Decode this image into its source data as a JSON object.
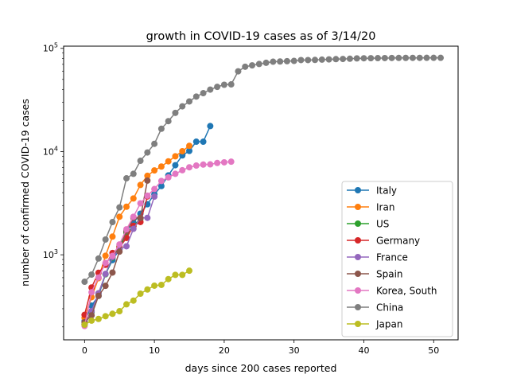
{
  "chart_data": {
    "type": "line",
    "title": "growth in COVID-19 cases as of 3/14/20",
    "xlabel": "days since 200 cases reported",
    "ylabel": "number of confirmed COVID-19 cases",
    "y_scale": "log",
    "xlim": [
      -3,
      53.5
    ],
    "ylim": [
      150,
      105000
    ],
    "x_ticks": [
      0,
      10,
      20,
      30,
      40,
      50
    ],
    "y_ticks": [
      {
        "value": 1000,
        "label": "10",
        "exp": "3"
      },
      {
        "value": 10000,
        "label": "10",
        "exp": "4"
      },
      {
        "value": 100000,
        "label": "10",
        "exp": "5"
      }
    ],
    "grid": false,
    "legend_position": "lower right",
    "marker": "circle",
    "series": [
      {
        "name": "Italy",
        "color": "#1f77b4",
        "values": [
          229,
          322,
          400,
          650,
          888,
          1128,
          1694,
          2036,
          2502,
          3089,
          3858,
          4636,
          5883,
          7375,
          9172,
          10149,
          12462,
          12462,
          17660
        ]
      },
      {
        "name": "Iran",
        "color": "#ff7f0e",
        "values": [
          245,
          388,
          593,
          978,
          1501,
          2336,
          2922,
          3513,
          4747,
          5823,
          6566,
          7161,
          8042,
          9000,
          10075,
          11364
        ]
      },
      {
        "name": "US",
        "color": "#2ca02c",
        "values": [
          213,
          279,
          423,
          647,
          937,
          1215,
          1629,
          1896,
          2234
        ]
      },
      {
        "name": "Germany",
        "color": "#d62728",
        "values": [
          262,
          482,
          670,
          799,
          1040,
          1176,
          1457,
          1908,
          2078,
          3675
        ]
      },
      {
        "name": "France",
        "color": "#9467bd",
        "values": [
          212,
          285,
          423,
          653,
          949,
          1126,
          1209,
          1784,
          2281,
          2281,
          3661
        ]
      },
      {
        "name": "Spain",
        "color": "#8c564b",
        "values": [
          222,
          259,
          400,
          500,
          673,
          1073,
          1695,
          2277,
          2277,
          5232
        ]
      },
      {
        "name": "Korea, South",
        "color": "#e377c2",
        "values": [
          204,
          433,
          602,
          833,
          977,
          1261,
          1766,
          2337,
          3150,
          3736,
          4335,
          5186,
          5621,
          6088,
          6593,
          7041,
          7314,
          7478,
          7513,
          7755,
          7869,
          7979
        ]
      },
      {
        "name": "China",
        "color": "#7f7f7f",
        "values": [
          548,
          643,
          920,
          1406,
          2075,
          2877,
          5509,
          6087,
          8141,
          9802,
          11891,
          16630,
          19716,
          23707,
          27440,
          30587,
          34110,
          36814,
          39829,
          42354,
          44386,
          44759,
          59895,
          66358,
          68413,
          70513,
          72434,
          74211,
          74619,
          75077,
          75550,
          77001,
          77022,
          77241,
          77754,
          78166,
          78600,
          78928,
          79356,
          79932,
          80136,
          80261,
          80386,
          80537,
          80690,
          80770,
          80823,
          80860,
          80887,
          80921,
          80932,
          80945
        ]
      },
      {
        "name": "Japan",
        "color": "#bcbd22",
        "values": [
          210,
          230,
          239,
          254,
          268,
          284,
          331,
          360,
          420,
          461,
          502,
          511,
          581,
          639,
          639,
          701
        ]
      }
    ]
  }
}
